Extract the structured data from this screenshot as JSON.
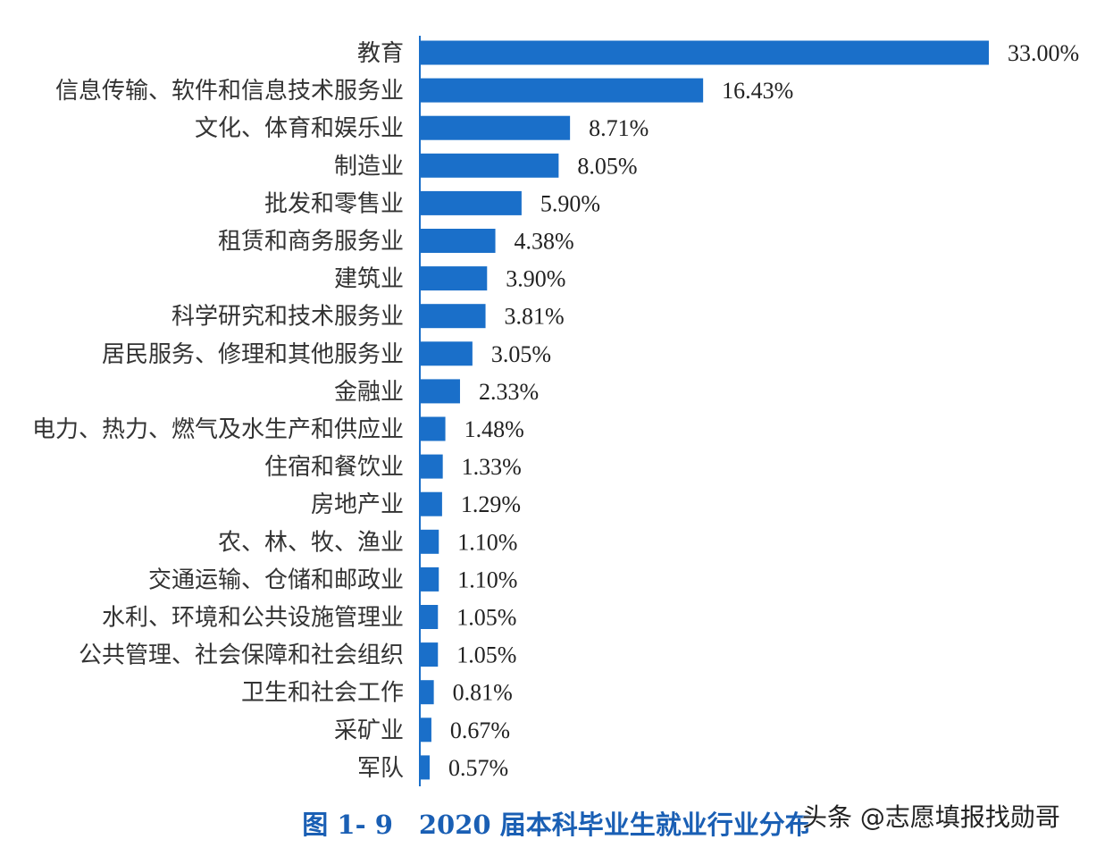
{
  "chart_data": {
    "type": "bar",
    "orientation": "horizontal",
    "categories": [
      "教育",
      "信息传输、软件和信息技术服务业",
      "文化、体育和娱乐业",
      "制造业",
      "批发和零售业",
      "租赁和商务服务业",
      "建筑业",
      "科学研究和技术服务业",
      "居民服务、修理和其他服务业",
      "金融业",
      "电力、热力、燃气及水生产和供应业",
      "住宿和餐饮业",
      "房地产业",
      "农、林、牧、渔业",
      "交通运输、仓储和邮政业",
      "水利、环境和公共设施管理业",
      "公共管理、社会保障和社会组织",
      "卫生和社会工作",
      "采矿业",
      "军队"
    ],
    "values": [
      33.0,
      16.43,
      8.71,
      8.05,
      5.9,
      4.38,
      3.9,
      3.81,
      3.05,
      2.33,
      1.48,
      1.33,
      1.29,
      1.1,
      1.1,
      1.05,
      1.05,
      0.81,
      0.67,
      0.57
    ],
    "value_labels": [
      "33.00%",
      "16.43%",
      "8.71%",
      "8.05%",
      "5.90%",
      "4.38%",
      "3.90%",
      "3.81%",
      "3.05%",
      "2.33%",
      "1.48%",
      "1.33%",
      "1.29%",
      "1.10%",
      "1.10%",
      "1.05%",
      "1.05%",
      "0.81%",
      "0.67%",
      "0.57%"
    ],
    "bar_color": "#1a6fc9",
    "title": "图 1- 9　2020 届本科毕业生就业行业分布",
    "xlim": [
      0,
      33
    ],
    "grid": false,
    "legend": "none"
  },
  "caption": "图 1- 9　2020 届本科毕业生就业行业分布",
  "watermark": "头条 @志愿填报找勋哥"
}
